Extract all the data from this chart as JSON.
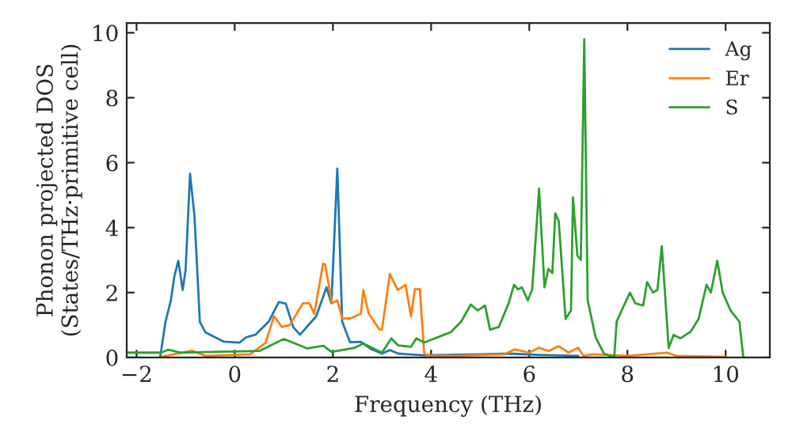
{
  "chart_data": {
    "type": "line",
    "xlabel": "Frequency (THz)",
    "ylabel": "Phonon projected DOS\n(States/THz·primitive cell)",
    "xlim": [
      -2.2,
      10.9
    ],
    "ylim": [
      0,
      10.3
    ],
    "xticks": [
      {
        "value": -2,
        "label": "−2"
      },
      0,
      2,
      4,
      6,
      8,
      10
    ],
    "yticks": [
      0,
      2,
      4,
      6,
      8,
      10
    ],
    "legend": "top right",
    "grid": false,
    "marker": "none",
    "line_style": "solid",
    "series": [
      {
        "name": "Ag",
        "color": "#1f77b4",
        "x": [
          -1.52,
          -1.41,
          -1.3,
          -1.23,
          -1.15,
          -1.06,
          -1.0,
          -0.91,
          -0.82,
          -0.71,
          -0.6,
          -0.23,
          0.1,
          0.23,
          0.42,
          0.69,
          0.9,
          1.04,
          1.19,
          1.33,
          1.66,
          1.87,
          1.97,
          2.09,
          2.19,
          2.35,
          2.57,
          2.78,
          3.0,
          3.16,
          3.33,
          3.86,
          5.0,
          5.6,
          6.2,
          7.0
        ],
        "values": [
          0,
          1.1,
          1.76,
          2.49,
          2.98,
          2.08,
          2.7,
          5.66,
          4.36,
          1.1,
          0.78,
          0.49,
          0.46,
          0.62,
          0.7,
          1.1,
          1.71,
          1.66,
          0.94,
          0.7,
          1.27,
          2.16,
          1.67,
          5.82,
          1.1,
          0.47,
          0.48,
          0.26,
          0.12,
          0.23,
          0.12,
          0.07,
          0.1,
          0.12,
          0.08,
          0.05
        ]
      },
      {
        "name": "Er",
        "color": "#ff7f0e",
        "x": [
          -1.5,
          -0.87,
          -0.6,
          0.31,
          0.63,
          0.8,
          0.96,
          1.12,
          1.39,
          1.52,
          1.62,
          1.8,
          1.84,
          1.98,
          2.09,
          2.19,
          2.35,
          2.57,
          2.62,
          2.73,
          2.95,
          3.0,
          3.16,
          3.32,
          3.48,
          3.59,
          3.67,
          3.77,
          3.86,
          4.0,
          4.5,
          5.5,
          5.7,
          6.0,
          6.2,
          6.4,
          6.6,
          6.8,
          7.0,
          7.1,
          7.3,
          8.0,
          8.8,
          9.0,
          10.0
        ],
        "values": [
          0.02,
          0.21,
          0.05,
          0.1,
          0.45,
          1.27,
          0.94,
          1.0,
          1.67,
          1.67,
          1.35,
          2.89,
          2.87,
          1.67,
          1.76,
          1.2,
          1.2,
          1.35,
          2.08,
          1.35,
          0.86,
          0.86,
          2.57,
          2.08,
          2.24,
          1.27,
          2.1,
          2.1,
          0.12,
          0.05,
          0.05,
          0.1,
          0.25,
          0.15,
          0.3,
          0.2,
          0.35,
          0.15,
          0.3,
          0.05,
          0.1,
          0.05,
          0.15,
          0.05,
          0.02
        ]
      },
      {
        "name": "S",
        "color": "#2ca02c",
        "x": [
          -2.2,
          -1.5,
          -1.35,
          -1.1,
          0.5,
          1.0,
          1.48,
          1.81,
          1.97,
          2.45,
          2.62,
          3.0,
          3.19,
          3.33,
          3.59,
          3.7,
          3.86,
          4.4,
          4.61,
          4.81,
          4.95,
          5.1,
          5.2,
          5.38,
          5.58,
          5.69,
          5.77,
          5.85,
          5.97,
          6.06,
          6.2,
          6.31,
          6.39,
          6.47,
          6.53,
          6.6,
          6.74,
          6.85,
          6.89,
          6.98,
          7.05,
          7.12,
          7.19,
          7.35,
          7.52,
          7.73,
          7.78,
          7.9,
          8.05,
          8.16,
          8.32,
          8.4,
          8.52,
          8.61,
          8.7,
          8.84,
          8.94,
          9.08,
          9.29,
          9.45,
          9.61,
          9.7,
          9.83,
          9.94,
          10.1,
          10.28,
          10.36
        ],
        "values": [
          0.15,
          0.15,
          0.24,
          0.15,
          0.2,
          0.57,
          0.28,
          0.36,
          0.17,
          0.3,
          0.43,
          0.15,
          0.59,
          0.37,
          0.33,
          0.59,
          0.46,
          0.78,
          1.1,
          1.63,
          1.45,
          1.6,
          0.86,
          0.94,
          1.67,
          2.24,
          2.1,
          2.16,
          1.76,
          2.1,
          5.2,
          2.16,
          2.73,
          2.6,
          4.44,
          4.2,
          1.19,
          1.45,
          4.93,
          3.14,
          3.0,
          9.8,
          1.76,
          0.63,
          0.12,
          0,
          1.1,
          1.51,
          2.0,
          1.67,
          1.6,
          2.32,
          2.0,
          2.08,
          3.43,
          0.29,
          0.7,
          0.59,
          0.8,
          1.19,
          2.24,
          2.0,
          2.98,
          2.0,
          1.45,
          1.1,
          0
        ]
      }
    ]
  }
}
